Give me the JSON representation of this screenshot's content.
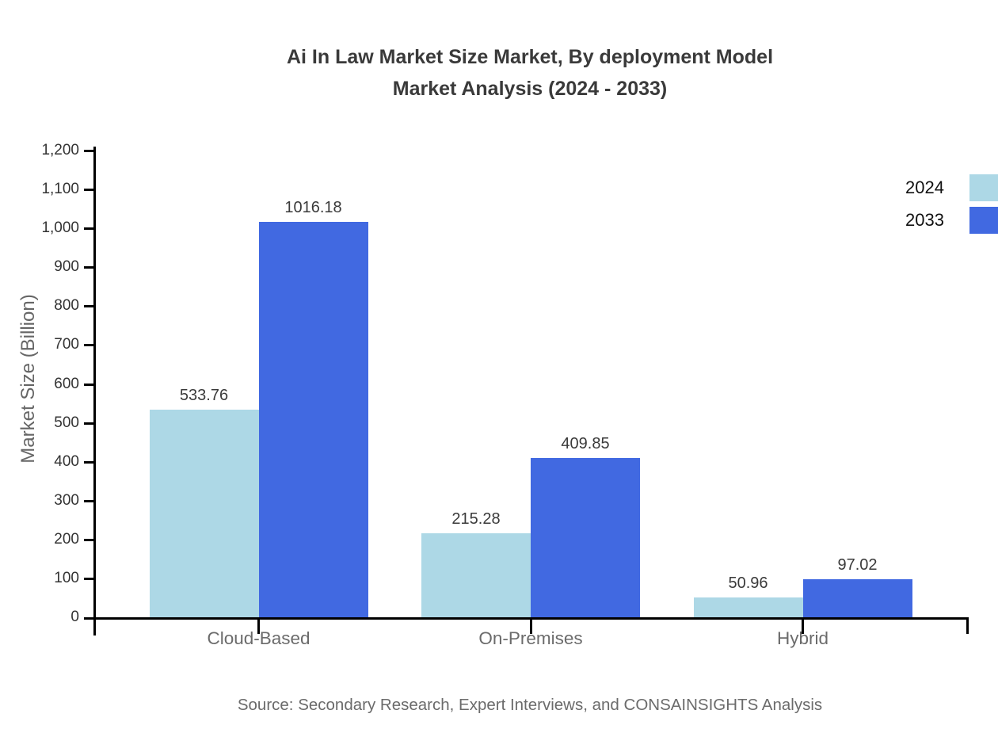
{
  "title": "Ai In Law Market Size Market, By deployment Model\nMarket Analysis (2024 - 2033)",
  "source": "Source: Secondary Research, Expert Interviews, and CONSAINSIGHTS Analysis",
  "legend": {
    "items": [
      {
        "label": "2024",
        "color": "#ADD8E6"
      },
      {
        "label": "2033",
        "color": "#4169E1"
      }
    ]
  },
  "colors": {
    "series_2024": "#ADD8E6",
    "series_2033": "#4169E1",
    "axis": "#000000",
    "title_text": "#3a3a3a",
    "tick_text": "#333333",
    "category_text": "#6b6b6b",
    "source_text": "#6b6b6b"
  },
  "chart_data": {
    "type": "bar",
    "title": "Ai In Law Market Size Market, By deployment Model Market Analysis (2024 - 2033)",
    "categories": [
      "Cloud-Based",
      "On-Premises",
      "Hybrid"
    ],
    "series": [
      {
        "name": "2024",
        "color": "#ADD8E6",
        "values": [
          533.76,
          215.28,
          50.96
        ]
      },
      {
        "name": "2033",
        "color": "#4169E1",
        "values": [
          1016.18,
          409.85,
          97.02
        ]
      }
    ],
    "xlabel": "",
    "ylabel": "Market Size (Billion)",
    "ylim": [
      0,
      1200
    ],
    "y_tick_step": 100,
    "y_tick_labels": [
      "0",
      "100",
      "200",
      "300",
      "400",
      "500",
      "600",
      "700",
      "800",
      "900",
      "1,000",
      "1,100",
      "1,200"
    ],
    "grid": false,
    "legend_position": "top-right",
    "value_labels": true,
    "source": "Source: Secondary Research, Expert Interviews, and CONSAINSIGHTS Analysis"
  }
}
